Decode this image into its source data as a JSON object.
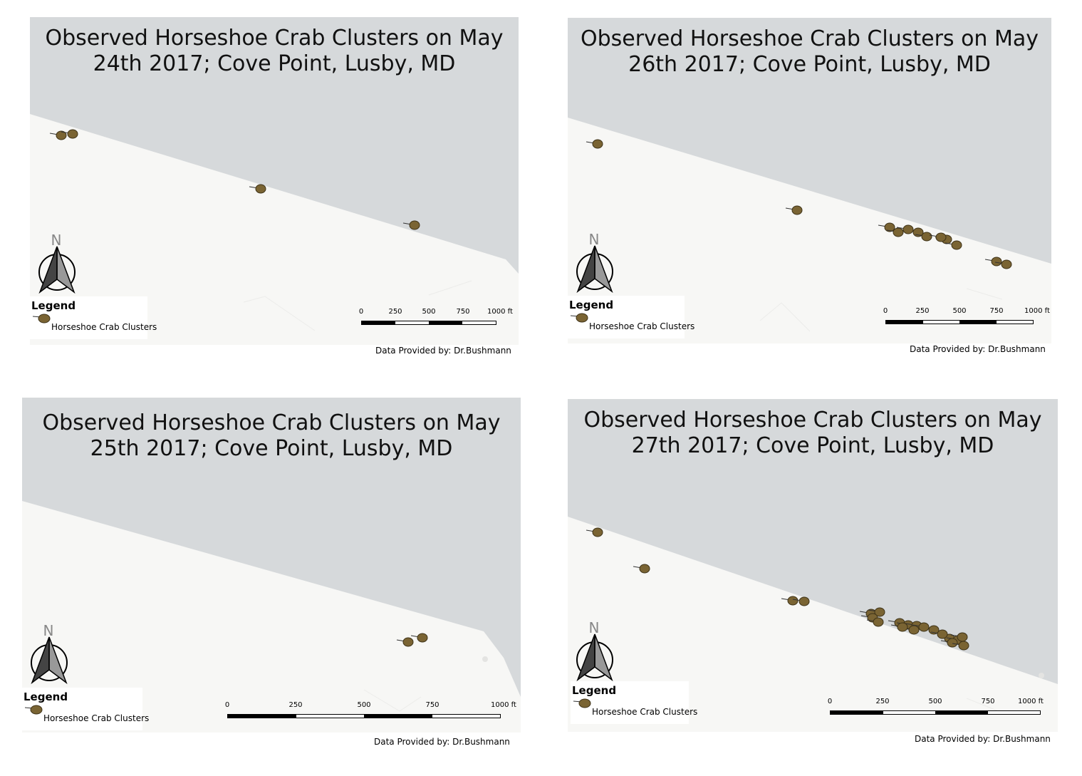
{
  "legend_title": "Legend",
  "legend_label": "Horseshoe Crab Clusters",
  "north_label": "N",
  "credit": "Data Provided by: Dr.Bushmann",
  "scale_ticks": [
    "0",
    "250",
    "500",
    "750",
    "1000 ft"
  ],
  "colors": {
    "water": "#d6d9db",
    "land": "#f7f7f5",
    "crab": "#7a6433"
  },
  "panels": [
    {
      "id": "may24",
      "title_line1": "Observed Horseshoe Crab Clusters on May",
      "title_line2": "24th 2017; Cove Point, Lusby, MD",
      "cluster_count": 4
    },
    {
      "id": "may26",
      "title_line1": "Observed Horseshoe Crab Clusters on May",
      "title_line2": "26th 2017; Cove Point, Lusby, MD",
      "cluster_count": 12
    },
    {
      "id": "may25",
      "title_line1": "Observed Horseshoe Crab Clusters on May",
      "title_line2": "25th 2017; Cove Point, Lusby, MD",
      "cluster_count": 2
    },
    {
      "id": "may27",
      "title_line1": "Observed Horseshoe Crab Clusters on May",
      "title_line2": "27th 2017; Cove Point, Lusby, MD",
      "cluster_count": 21
    }
  ]
}
